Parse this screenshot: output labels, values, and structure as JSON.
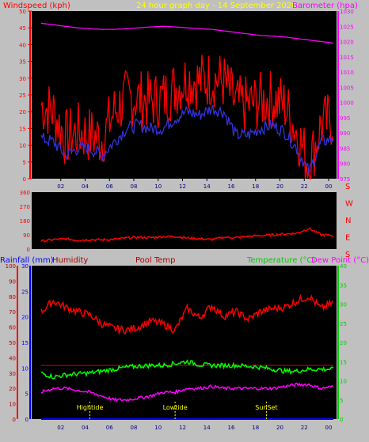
{
  "colors": {
    "background": "#c0c0c0",
    "plot_bg": "#000000",
    "wind": "#ff0000",
    "gust_avg": "#3333dd",
    "barometer": "#ff00ff",
    "direction": "#ff0000",
    "humidity": "#ff0000",
    "pool": "#aa0000",
    "temperature": "#00ff00",
    "dewpoint": "#ff00ff",
    "rainfall": "#0000ff",
    "yellow": "#ffff00",
    "axis_left": "#ff0000",
    "axis_right": "#ff00ff",
    "axis_rain": "#0000ff",
    "axis_temp": "#00cc00"
  },
  "chart_data": [
    {
      "type": "line",
      "title": "24 hour graph day - 14 September 2020",
      "ylabel": "Windspeed (kph)",
      "y2label": "Barometer (hpa)",
      "ylim": [
        0,
        50
      ],
      "y2lim": [
        975,
        1030
      ],
      "y_ticks": [
        "0",
        "5",
        "10",
        "15",
        "20",
        "25",
        "30",
        "35",
        "40",
        "45",
        "50"
      ],
      "y2_ticks": [
        "975",
        "980",
        "985",
        "990",
        "995",
        "1000",
        "1005",
        "1010",
        "1015",
        "1020",
        "1025",
        "1030"
      ],
      "x_ticks": [
        "02",
        "04",
        "06",
        "08",
        "10",
        "12",
        "14",
        "16",
        "18",
        "20",
        "22",
        "00"
      ],
      "x": [
        0,
        1,
        2,
        3,
        4,
        5,
        6,
        7,
        8,
        9,
        10,
        11,
        12,
        13,
        14,
        15,
        16,
        17,
        18,
        19,
        20,
        21,
        22,
        23,
        24
      ],
      "series": [
        {
          "key": "gust",
          "values": [
            22,
            20,
            12,
            14,
            13,
            12,
            20,
            24,
            24,
            23,
            24,
            27,
            30,
            29,
            30,
            29,
            22,
            22,
            23,
            24,
            22,
            14,
            4,
            16,
            18
          ]
        },
        {
          "key": "average",
          "values": [
            12,
            11,
            7,
            9,
            9,
            7,
            11,
            15,
            16,
            15,
            15,
            18,
            20,
            19,
            21,
            20,
            13,
            13,
            15,
            16,
            14,
            9,
            2,
            11,
            12
          ]
        },
        {
          "key": "barometer",
          "values": [
            1026,
            1025.5,
            1025,
            1024.5,
            1024.2,
            1024,
            1024,
            1024.2,
            1024.5,
            1024.8,
            1025,
            1024.8,
            1024.5,
            1024.2,
            1024,
            1023.5,
            1023,
            1022.5,
            1022,
            1021.8,
            1021.5,
            1021,
            1020.5,
            1020,
            1019.5
          ]
        }
      ]
    },
    {
      "type": "line",
      "ylim": [
        0,
        360
      ],
      "y_ticks": [
        "0",
        "90",
        "180",
        "270",
        "360"
      ],
      "compass": [
        "S",
        "E",
        "N",
        "W",
        "S"
      ],
      "x": [
        0,
        1,
        2,
        3,
        4,
        5,
        6,
        7,
        8,
        9,
        10,
        11,
        12,
        13,
        14,
        15,
        16,
        17,
        18,
        19,
        20,
        21,
        22,
        23,
        24
      ],
      "series": [
        {
          "key": "direction",
          "values": [
            50,
            60,
            65,
            55,
            60,
            58,
            62,
            70,
            75,
            72,
            78,
            80,
            70,
            65,
            60,
            75,
            72,
            80,
            85,
            90,
            95,
            100,
            130,
            90,
            85
          ]
        }
      ]
    },
    {
      "type": "line",
      "legend": [
        "Rainfall (mm)",
        "Humidity",
        "Pool Temp",
        "Temperature (°C)",
        "Dew Point (°C)"
      ],
      "ylim": [
        0,
        100
      ],
      "y_ticks": [
        "0",
        "10",
        "20",
        "30",
        "40",
        "50",
        "60",
        "70",
        "80",
        "90",
        "100"
      ],
      "rain_ticks": [
        "0",
        "5",
        "10",
        "15",
        "20",
        "25",
        "30"
      ],
      "temp_ticks": [
        "0",
        "5",
        "10",
        "15",
        "20",
        "25",
        "30",
        "35",
        "40"
      ],
      "temp_lim": [
        0,
        40
      ],
      "x_ticks": [
        "02",
        "04",
        "06",
        "08",
        "10",
        "12",
        "14",
        "16",
        "18",
        "20",
        "22",
        "00"
      ],
      "x": [
        0,
        1,
        2,
        3,
        4,
        5,
        6,
        7,
        8,
        9,
        10,
        11,
        12,
        13,
        14,
        15,
        16,
        17,
        18,
        19,
        20,
        21,
        22,
        23,
        24
      ],
      "series": [
        {
          "key": "humidity",
          "values": [
            70,
            77,
            73,
            70,
            68,
            62,
            59,
            58,
            60,
            64,
            62,
            58,
            72,
            66,
            74,
            67,
            70,
            65,
            70,
            72,
            73,
            77,
            80,
            72,
            76
          ]
        },
        {
          "key": "pool",
          "values": [
            35,
            35,
            35,
            35,
            35,
            35,
            35,
            35,
            35,
            35,
            35,
            35,
            35,
            35,
            35,
            35,
            35,
            35,
            35,
            35,
            35,
            35,
            35,
            35,
            35
          ]
        },
        {
          "key": "temperature",
          "values": [
            12,
            11,
            11.5,
            11.8,
            12,
            12.5,
            13,
            13.5,
            13.8,
            14,
            14,
            14.5,
            15,
            14.2,
            14,
            14,
            14,
            13.8,
            13.5,
            13,
            12.5,
            12.5,
            13,
            13,
            13
          ]
        },
        {
          "key": "dewpoint",
          "values": [
            7,
            8,
            8,
            7.5,
            7,
            6,
            5,
            5,
            5.5,
            6,
            7,
            7,
            8,
            8,
            8.5,
            8,
            8,
            8,
            8,
            8,
            8.5,
            9,
            9,
            8,
            8.5
          ]
        },
        {
          "key": "rainfall",
          "values": [
            0,
            0,
            0,
            0,
            0,
            0,
            0,
            0,
            0,
            0,
            0,
            0,
            0,
            0,
            0,
            0,
            0,
            0,
            0,
            0,
            0,
            0,
            0,
            0,
            0
          ]
        }
      ],
      "annotations": [
        {
          "label": "Hightide",
          "x": 4
        },
        {
          "label": "Lowtide",
          "x": 11
        },
        {
          "label": "SunSet",
          "x": 18.5
        }
      ]
    }
  ]
}
